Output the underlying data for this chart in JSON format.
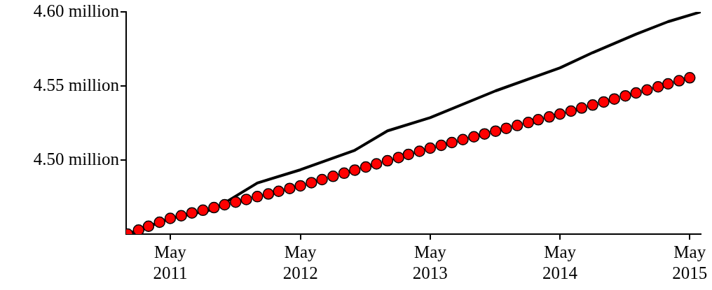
{
  "chart_data": {
    "type": "line",
    "xlim": [
      "2010-12-28",
      "2015-06-01"
    ],
    "ylim": [
      4.45,
      4.6
    ],
    "xticks": [
      {
        "value": "2011-05-01",
        "label": "May 2011"
      },
      {
        "value": "2012-05-01",
        "label": "May 2012"
      },
      {
        "value": "2013-05-01",
        "label": "May 2013"
      },
      {
        "value": "2014-05-01",
        "label": "May 2014"
      },
      {
        "value": "2015-05-01",
        "label": "May 2015"
      }
    ],
    "yticks": [
      {
        "value": 4.5,
        "label": "4.50 million"
      },
      {
        "value": 4.55,
        "label": "4.55 million"
      },
      {
        "value": 4.6,
        "label": "4.60 million"
      }
    ],
    "grid": false,
    "legend": false,
    "series": [
      {
        "color": "#000000",
        "marker": "none",
        "line_style": "solid",
        "x": [
          "2011-01-01",
          "2011-05-01",
          "2011-09-01",
          "2012-01-01",
          "2012-05-01",
          "2012-10-01",
          "2013-01-01",
          "2013-05-01",
          "2013-11-01",
          "2014-05-01",
          "2014-08-01",
          "2014-12-01",
          "2015-03-01",
          "2015-06-01"
        ],
        "values": [
          4.45,
          4.4606,
          4.4667,
          4.4845,
          4.4934,
          4.5066,
          4.5197,
          4.5286,
          4.5467,
          4.5622,
          4.5725,
          4.585,
          4.5934,
          4.6
        ]
      },
      {
        "type": "scatter",
        "color": "#ff0000",
        "marker": "circle",
        "x": [
          "2011-01-01",
          "2011-02-01",
          "2011-03-01",
          "2011-04-01",
          "2011-05-01",
          "2011-06-01",
          "2011-07-01",
          "2011-08-01",
          "2011-09-01",
          "2011-10-01",
          "2011-11-01",
          "2011-12-01",
          "2012-01-01",
          "2012-02-01",
          "2012-03-01",
          "2012-04-01",
          "2012-05-01",
          "2012-06-01",
          "2012-07-01",
          "2012-08-01",
          "2012-09-01",
          "2012-10-01",
          "2012-11-01",
          "2012-12-01",
          "2013-01-01",
          "2013-02-01",
          "2013-03-01",
          "2013-04-01",
          "2013-05-01",
          "2013-06-01",
          "2013-07-01",
          "2013-08-01",
          "2013-09-01",
          "2013-10-01",
          "2013-11-01",
          "2013-12-01",
          "2014-01-01",
          "2014-02-01",
          "2014-03-01",
          "2014-04-01",
          "2014-05-01",
          "2014-06-01",
          "2014-07-01",
          "2014-08-01",
          "2014-09-01",
          "2014-10-01",
          "2014-11-01",
          "2014-12-01",
          "2015-01-01",
          "2015-02-01",
          "2015-03-01",
          "2015-04-01",
          "2015-05-01"
        ],
        "values": [
          4.45,
          4.4527,
          4.4553,
          4.458,
          4.4606,
          4.4624,
          4.4643,
          4.4661,
          4.4679,
          4.4698,
          4.4716,
          4.4734,
          4.4753,
          4.4771,
          4.4789,
          4.4808,
          4.4826,
          4.4847,
          4.4868,
          4.489,
          4.4911,
          4.4932,
          4.4953,
          4.4974,
          4.4995,
          4.5017,
          4.5038,
          4.5059,
          4.508,
          4.5099,
          4.5118,
          4.5138,
          4.5157,
          4.5176,
          4.5195,
          4.5214,
          4.5233,
          4.5253,
          4.5272,
          4.5291,
          4.531,
          4.533,
          4.5351,
          4.5371,
          4.5392,
          4.5412,
          4.5433,
          4.5453,
          4.5473,
          4.5494,
          4.5514,
          4.5535,
          4.5555
        ]
      }
    ]
  }
}
